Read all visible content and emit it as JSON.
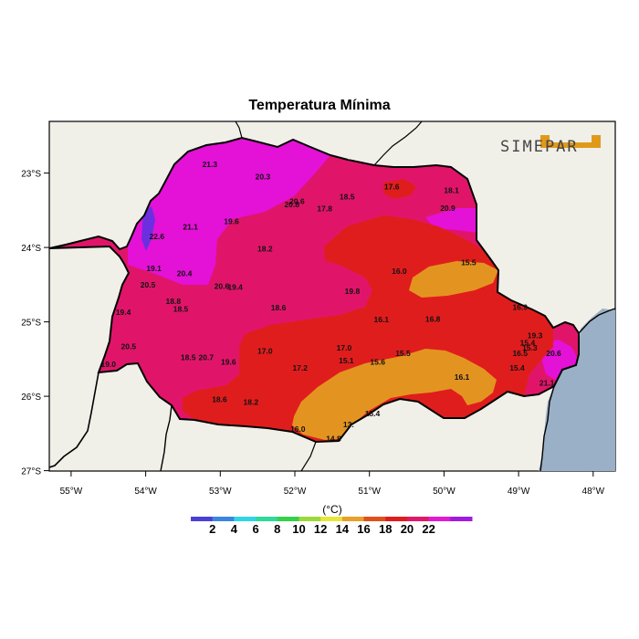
{
  "title": "Temperatura Mínima",
  "logo": {
    "text": "SIMEPAR",
    "accent_color": "#e09a1a"
  },
  "lon_ticks": [
    "55°W",
    "54°W",
    "53°W",
    "52°W",
    "51°W",
    "50°W",
    "49°W",
    "48°W"
  ],
  "lat_ticks": [
    "23°S",
    "24°S",
    "25°S",
    "26°S",
    "27°S"
  ],
  "colorbar": {
    "unit": "(°C)",
    "colors": [
      "#4b3fd8",
      "#3a86e0",
      "#2ed6e6",
      "#2ed99b",
      "#35d14a",
      "#9bd93a",
      "#e8e63a",
      "#e8a02a",
      "#e0501a",
      "#e01c1c",
      "#e0186a",
      "#e21ad2",
      "#a01ae0"
    ],
    "labels": [
      "2",
      "4",
      "6",
      "8",
      "10",
      "12",
      "14",
      "16",
      "18",
      "20",
      "22"
    ]
  },
  "colors": {
    "ocean": "#9ab0c6",
    "land": "#f0efe8",
    "temp_14_16": "#e39420",
    "temp_16_18": "#e01d1d",
    "temp_18_20": "#e0156a",
    "temp_20_22": "#e312d6",
    "temp_22_24": "#6b2fe0"
  },
  "station_values": [
    {
      "t": "21.3",
      "lon": -53.14,
      "lat": -22.88
    },
    {
      "t": "20.3",
      "lon": -52.43,
      "lat": -23.05
    },
    {
      "t": "20.6",
      "lon": -51.97,
      "lat": -23.38
    },
    {
      "t": "20.8",
      "lon": -52.04,
      "lat": -23.42
    },
    {
      "t": "18.5",
      "lon": -51.3,
      "lat": -23.32
    },
    {
      "t": "17.6",
      "lon": -50.7,
      "lat": -23.18
    },
    {
      "t": "18.1",
      "lon": -49.9,
      "lat": -23.23
    },
    {
      "t": "20.9",
      "lon": -49.95,
      "lat": -23.47
    },
    {
      "t": "17.8",
      "lon": -51.6,
      "lat": -23.48
    },
    {
      "t": "21.1",
      "lon": -53.4,
      "lat": -23.72
    },
    {
      "t": "19.6",
      "lon": -52.85,
      "lat": -23.65
    },
    {
      "t": "22.6",
      "lon": -53.85,
      "lat": -23.85
    },
    {
      "t": "18.2",
      "lon": -52.4,
      "lat": -24.02
    },
    {
      "t": "16.0",
      "lon": -50.6,
      "lat": -24.32
    },
    {
      "t": "15.5",
      "lon": -49.67,
      "lat": -24.2
    },
    {
      "t": "19.1",
      "lon": -53.89,
      "lat": -24.28
    },
    {
      "t": "20.4",
      "lon": -53.48,
      "lat": -24.35
    },
    {
      "t": "20.5",
      "lon": -53.97,
      "lat": -24.5
    },
    {
      "t": "20.6",
      "lon": -52.98,
      "lat": -24.52
    },
    {
      "t": "19.4",
      "lon": -52.8,
      "lat": -24.53
    },
    {
      "t": "19.8",
      "lon": -51.23,
      "lat": -24.59
    },
    {
      "t": "18.8",
      "lon": -53.63,
      "lat": -24.72
    },
    {
      "t": "18.5",
      "lon": -53.53,
      "lat": -24.83
    },
    {
      "t": "18.6",
      "lon": -52.22,
      "lat": -24.81
    },
    {
      "t": "19.4",
      "lon": -54.3,
      "lat": -24.87
    },
    {
      "t": "16.1",
      "lon": -50.84,
      "lat": -24.97
    },
    {
      "t": "16.8",
      "lon": -50.15,
      "lat": -24.96
    },
    {
      "t": "16.9",
      "lon": -48.98,
      "lat": -24.8
    },
    {
      "t": "19.3",
      "lon": -48.78,
      "lat": -25.18
    },
    {
      "t": "15.4",
      "lon": -48.88,
      "lat": -25.28
    },
    {
      "t": "15.3",
      "lon": -48.85,
      "lat": -25.35
    },
    {
      "t": "16.5",
      "lon": -48.98,
      "lat": -25.42
    },
    {
      "t": "20.6",
      "lon": -48.53,
      "lat": -25.42
    },
    {
      "t": "15.4",
      "lon": -49.02,
      "lat": -25.62
    },
    {
      "t": "20.5",
      "lon": -54.23,
      "lat": -25.33
    },
    {
      "t": "17.0",
      "lon": -52.4,
      "lat": -25.39
    },
    {
      "t": "17.0",
      "lon": -51.34,
      "lat": -25.35
    },
    {
      "t": "15.5",
      "lon": -50.55,
      "lat": -25.42
    },
    {
      "t": "18.5",
      "lon": -53.43,
      "lat": -25.48
    },
    {
      "t": "20.7",
      "lon": -53.19,
      "lat": -25.48
    },
    {
      "t": "19.6",
      "lon": -52.89,
      "lat": -25.54
    },
    {
      "t": "19.0",
      "lon": -54.5,
      "lat": -25.57
    },
    {
      "t": "15.1",
      "lon": -51.31,
      "lat": -25.52
    },
    {
      "t": "15.6",
      "lon": -50.89,
      "lat": -25.54
    },
    {
      "t": "17.2",
      "lon": -51.93,
      "lat": -25.62
    },
    {
      "t": "16.1",
      "lon": -49.76,
      "lat": -25.74
    },
    {
      "t": "21.1",
      "lon": -48.62,
      "lat": -25.82
    },
    {
      "t": "18.6",
      "lon": -53.01,
      "lat": -26.04
    },
    {
      "t": "18.2",
      "lon": -52.59,
      "lat": -26.08
    },
    {
      "t": "18.4",
      "lon": -50.96,
      "lat": -26.23
    },
    {
      "t": "13.",
      "lon": -51.28,
      "lat": -26.38
    },
    {
      "t": "16.0",
      "lon": -51.96,
      "lat": -26.44
    },
    {
      "t": "14.8",
      "lon": -51.48,
      "lat": -26.57
    }
  ]
}
